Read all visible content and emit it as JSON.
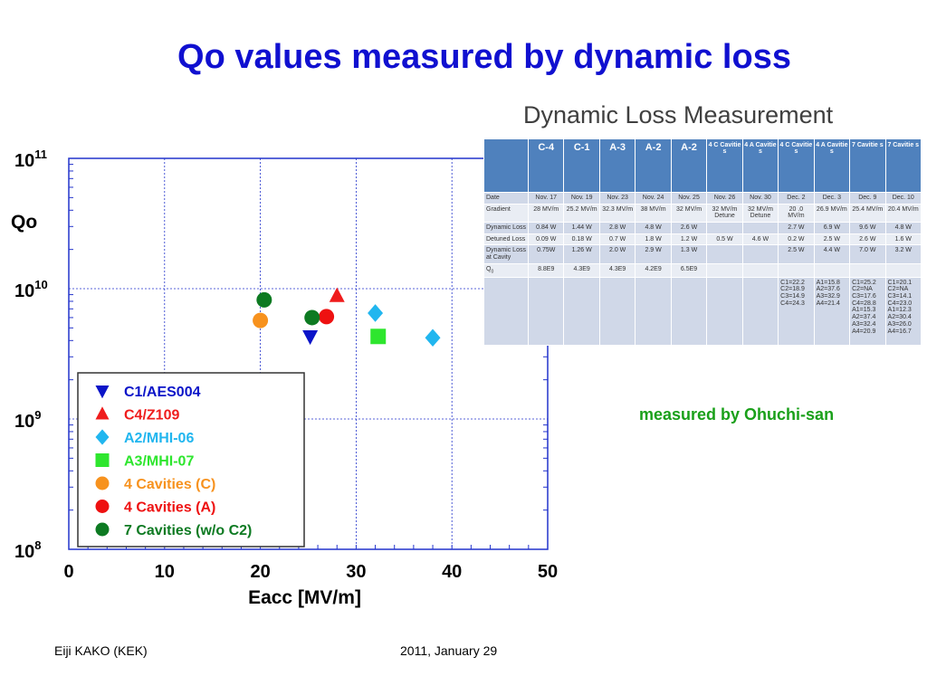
{
  "slide": {
    "title": "Qo values measured by dynamic loss",
    "credit": "measured by Ohuchi-san",
    "footer_author": "Eiji KAKO (KEK)",
    "footer_date": "2011, January 29"
  },
  "chart_data": {
    "type": "scatter",
    "ylabel": "Qo",
    "xlabel": "Eacc  [MV/m]",
    "xlim": [
      0,
      50
    ],
    "ylim": [
      100000000.0,
      100000000000.0
    ],
    "yscale": "log",
    "xticks": [
      "0",
      "10",
      "20",
      "30",
      "40",
      "50"
    ],
    "ytick_bases": [
      "10",
      "10",
      "10",
      "10"
    ],
    "ytick_exps": [
      "11",
      "10",
      "9",
      "8"
    ],
    "ytick_values": [
      100000000000.0,
      10000000000.0,
      1000000000.0,
      100000000.0
    ],
    "grid": true,
    "legend_position": "lower-left",
    "series": [
      {
        "name": "C1/AES004",
        "color": "#0b14c8",
        "marker": "triangle-down",
        "points": [
          [
            25.2,
            4300000000.0
          ]
        ]
      },
      {
        "name": "C4/Z109",
        "color": "#ef1c1c",
        "marker": "triangle-up",
        "points": [
          [
            28,
            8800000000.0
          ]
        ]
      },
      {
        "name": "A2/MHI-06",
        "color": "#21b6ef",
        "marker": "diamond",
        "points": [
          [
            32,
            6500000000.0
          ],
          [
            38,
            4200000000.0
          ]
        ]
      },
      {
        "name": "A3/MHI-07",
        "color": "#2ee62e",
        "marker": "square",
        "points": [
          [
            32.3,
            4300000000.0
          ]
        ]
      },
      {
        "name": "4 Cavities (C)",
        "color": "#f7921e",
        "marker": "circle",
        "points": [
          [
            20.0,
            5700000000.0
          ]
        ]
      },
      {
        "name": "4 Cavities (A)",
        "color": "#ee1111",
        "marker": "circle",
        "points": [
          [
            26.9,
            6100000000.0
          ]
        ]
      },
      {
        "name": "7 Cavities (w/o C2)",
        "color": "#0d7a22",
        "marker": "circle",
        "points": [
          [
            20.4,
            8200000000.0
          ],
          [
            25.4,
            6000000000.0
          ]
        ]
      }
    ]
  },
  "table": {
    "title": "Dynamic Loss Measurement",
    "headers": [
      "C-4",
      "C-1",
      "A-3",
      "A-2",
      "A-2",
      "4 C Cavitie s",
      "4 A Cavitie s",
      "4 C Cavitie s",
      "4 A Cavitie s",
      "7 Cavitie s",
      "7 Cavitie s"
    ],
    "rows": [
      {
        "label": "Date",
        "cells": [
          "Nov. 17",
          "Nov. 19",
          "Nov. 23",
          "Nov. 24",
          "Nov. 25",
          "Nov. 26",
          "Nov. 30",
          "Dec. 2",
          "Dec. 3",
          "Dec. 9",
          "Dec. 10"
        ]
      },
      {
        "label": "Gradient",
        "cells": [
          "28 MV/m",
          "25.2 MV/m",
          "32.3 MV/m",
          "38 MV/m",
          "32 MV/m",
          "32 MV/m Detune",
          "32 MV/m Detune",
          "20 .0 MV/m",
          "26.9 MV/m",
          "25.4 MV/m",
          "20.4 MV/m"
        ]
      },
      {
        "label": "Dynamic Loss",
        "cells": [
          "0.84 W",
          "1.44 W",
          "2.8 W",
          "4.8 W",
          "2.6 W",
          "",
          "",
          "2.7 W",
          "6.9 W",
          "9.6 W",
          "4.8 W"
        ]
      },
      {
        "label": "Detuned Loss",
        "cells": [
          "0.09 W",
          "0.18 W",
          "0.7 W",
          "1.8 W",
          "1.2 W",
          "0.5 W",
          "4.6 W",
          "0.2 W",
          "2.5 W",
          "2.6 W",
          "1.6 W"
        ]
      },
      {
        "label": "Dynamic Loss at Cavity",
        "cells": [
          "0.75W",
          "1.26 W",
          "2.0 W",
          "2.9 W",
          "1.3 W",
          "",
          "",
          "2.5 W",
          "4.4 W",
          "7.0 W",
          "3.2 W"
        ]
      },
      {
        "label": "Q0",
        "cells": [
          "8.8E9",
          "4.3E9",
          "4.3E9",
          "4.2E9",
          "6.5E9",
          "",
          "",
          "",
          "",
          "",
          ""
        ]
      },
      {
        "label": "",
        "cells": [
          "",
          "",
          "",
          "",
          "",
          "",
          "",
          "C1=22.2 C2=18.9 C3=14.9 C4=24.3",
          "A1=15.8 A2=37.6 A3=32.9 A4=21.4",
          "C1=25.2 C2=NA C3=17.6 C4=28.8 A1=15.3 A2=37.4 A3=32.4 A4=20.9",
          "C1=20.1 C2=NA C3=14.1 C4=23.0 A1=12.3 A2=30.4 A3=26.0 A4=16.7"
        ]
      }
    ]
  }
}
